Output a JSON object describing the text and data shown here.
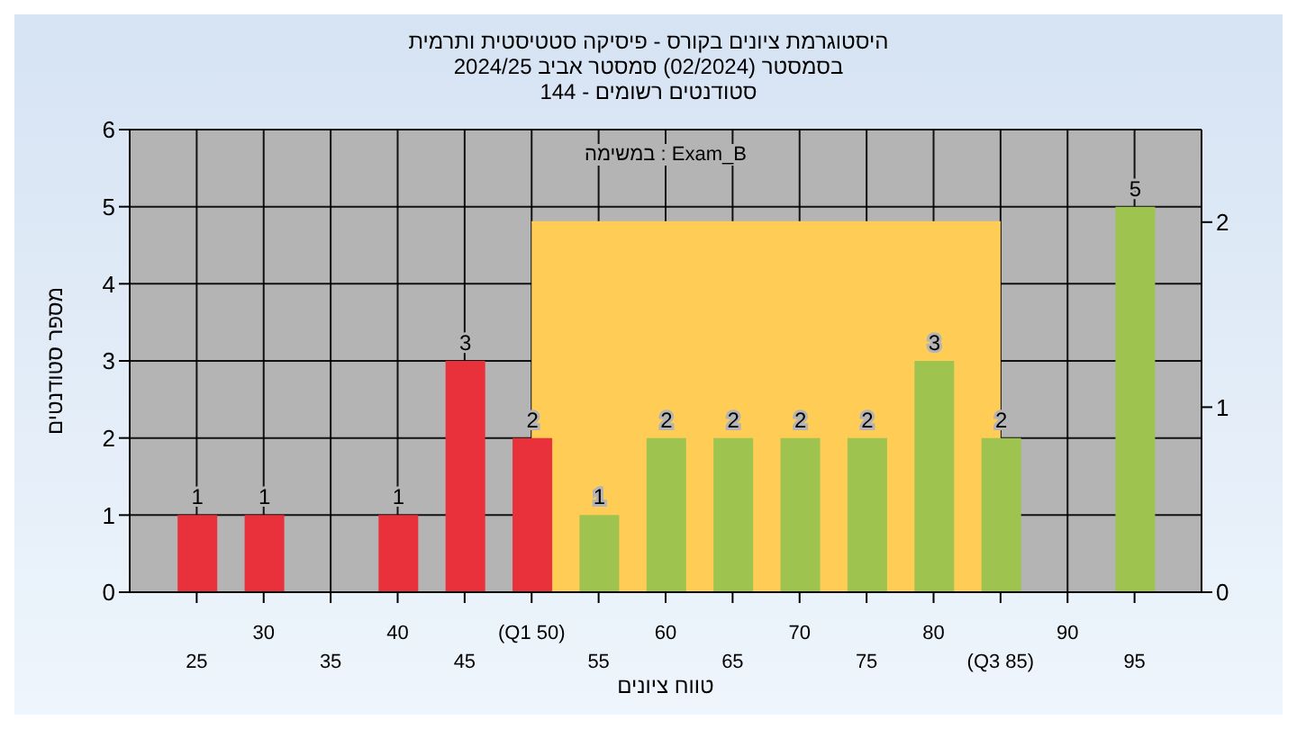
{
  "chart_data": {
    "type": "bar",
    "title": "היסטוגרמת ציונים בקורס - פיסיקה סטטיסטית ותרמית",
    "subtitle": "בסמסטר  (02/2024)  סמסטר אביב 2024/25\nסטודנטים רשומים - 144",
    "xlabel": "טווח ציונים",
    "ylabel": "מספר סטודנטים",
    "annotations": [
      "במשימה : Exam_B"
    ],
    "categories": [
      "25",
      "30",
      "35",
      "40",
      "45",
      "(Q1 50)",
      "55",
      "60",
      "65",
      "70",
      "75",
      "80",
      "(Q3 85)",
      "90",
      "95"
    ],
    "series": [
      {
        "type": "bar",
        "colors": [
          "#e8313a",
          "#e8313a",
          "#e8313a",
          "#e8313a",
          "#e8313a",
          "#e8313a",
          "#9fc34f",
          "#9fc34f",
          "#9fc34f",
          "#9fc34f",
          "#9fc34f",
          "#9fc34f",
          "#9fc34f",
          "#9fc34f",
          "#9fc34f"
        ],
        "values": [
          1,
          1,
          0,
          1,
          3,
          2,
          1,
          2,
          2,
          2,
          2,
          3,
          2,
          0,
          5
        ],
        "value_labels": [
          "1",
          "1",
          null,
          "1",
          "3",
          "2",
          "1",
          "2",
          "2",
          "2",
          "2",
          "3",
          "2",
          null,
          "5"
        ]
      },
      {
        "type": "area",
        "axis": "y2",
        "color": "#ffcc55",
        "values": [
          null,
          null,
          null,
          null,
          null,
          2,
          2,
          2,
          2,
          2,
          2,
          2,
          2,
          null,
          null
        ]
      }
    ],
    "ylim": [
      0,
      6
    ],
    "yticks": [
      0,
      1,
      2,
      3,
      4,
      5,
      6
    ],
    "y2lim": [
      0,
      2.5
    ],
    "y2ticks": [
      0,
      1,
      2
    ],
    "grid": true
  }
}
